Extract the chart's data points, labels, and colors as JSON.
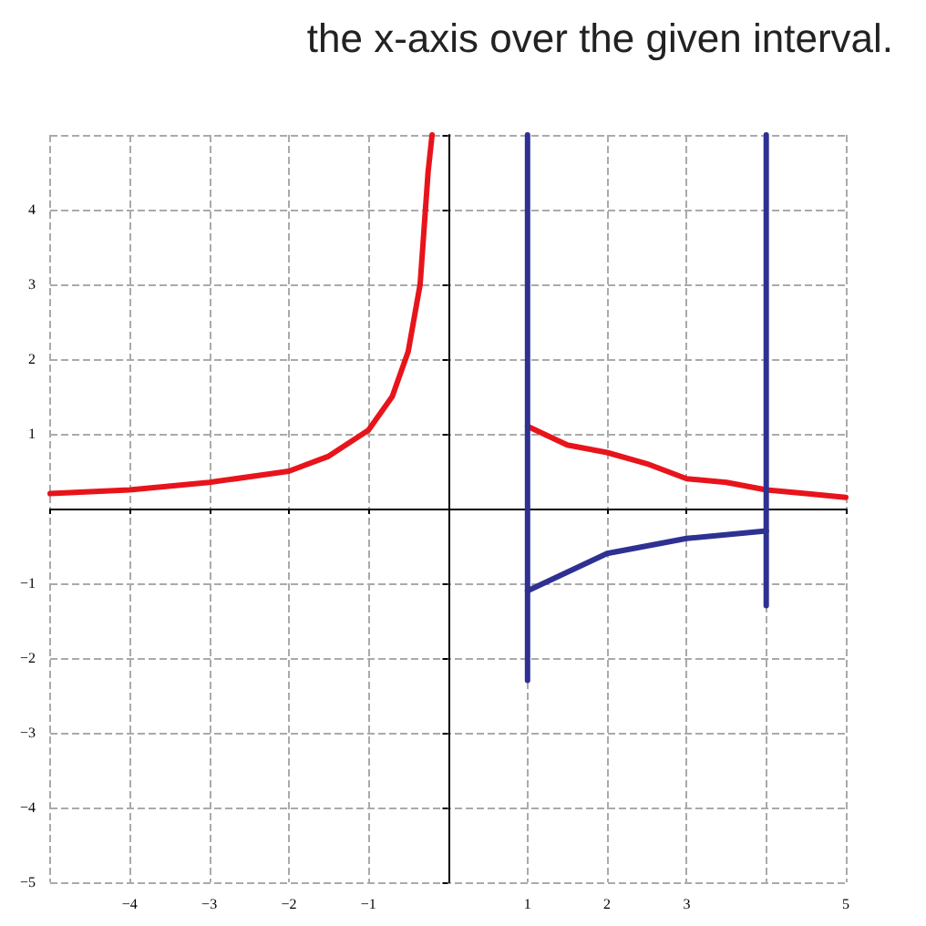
{
  "chart_data": {
    "type": "line",
    "annotations": [
      "the x-axis over the given interval."
    ],
    "xlim": [
      -5,
      5
    ],
    "ylim": [
      -5,
      5
    ],
    "xticks": [
      {
        "value": -5,
        "label": null
      },
      -4,
      -3,
      -2,
      -1,
      {
        "value": 0,
        "label": null
      },
      1,
      2,
      3,
      {
        "value": 4,
        "label": null
      },
      5
    ],
    "yticks": [
      -5,
      -4,
      -3,
      -2,
      -1,
      {
        "value": 0,
        "label": null
      },
      1,
      2,
      3,
      4,
      {
        "value": 5,
        "label": null
      }
    ],
    "grid": true,
    "marker": "none",
    "line_style": "solid",
    "series": [
      {
        "color": "#e8141b",
        "x": [
          -5,
          -4,
          -3,
          -2,
          -1.5,
          -1,
          -0.7,
          -0.5,
          -0.35,
          -0.25,
          -0.2
        ],
        "values": [
          0.2,
          0.25,
          0.35,
          0.5,
          0.7,
          1.05,
          1.5,
          2.1,
          3,
          4.5,
          5
        ]
      },
      {
        "color": "#e8141b",
        "x": [
          1,
          1.5,
          2,
          2.5,
          3,
          3.5,
          4,
          4.5,
          5
        ],
        "values": [
          1.1,
          0.85,
          0.75,
          0.6,
          0.4,
          0.35,
          0.25,
          0.2,
          0.15
        ]
      },
      {
        "color": "#2e3192",
        "x": [
          1,
          2,
          3,
          4
        ],
        "values": [
          -1.1,
          -0.6,
          -0.4,
          -0.3
        ]
      },
      {
        "color": "#2e3192",
        "x": [
          1,
          1
        ],
        "values": [
          -2.3,
          5
        ]
      },
      {
        "color": "#2e3192",
        "x": [
          4,
          4
        ],
        "values": [
          -1.3,
          5
        ]
      }
    ]
  }
}
